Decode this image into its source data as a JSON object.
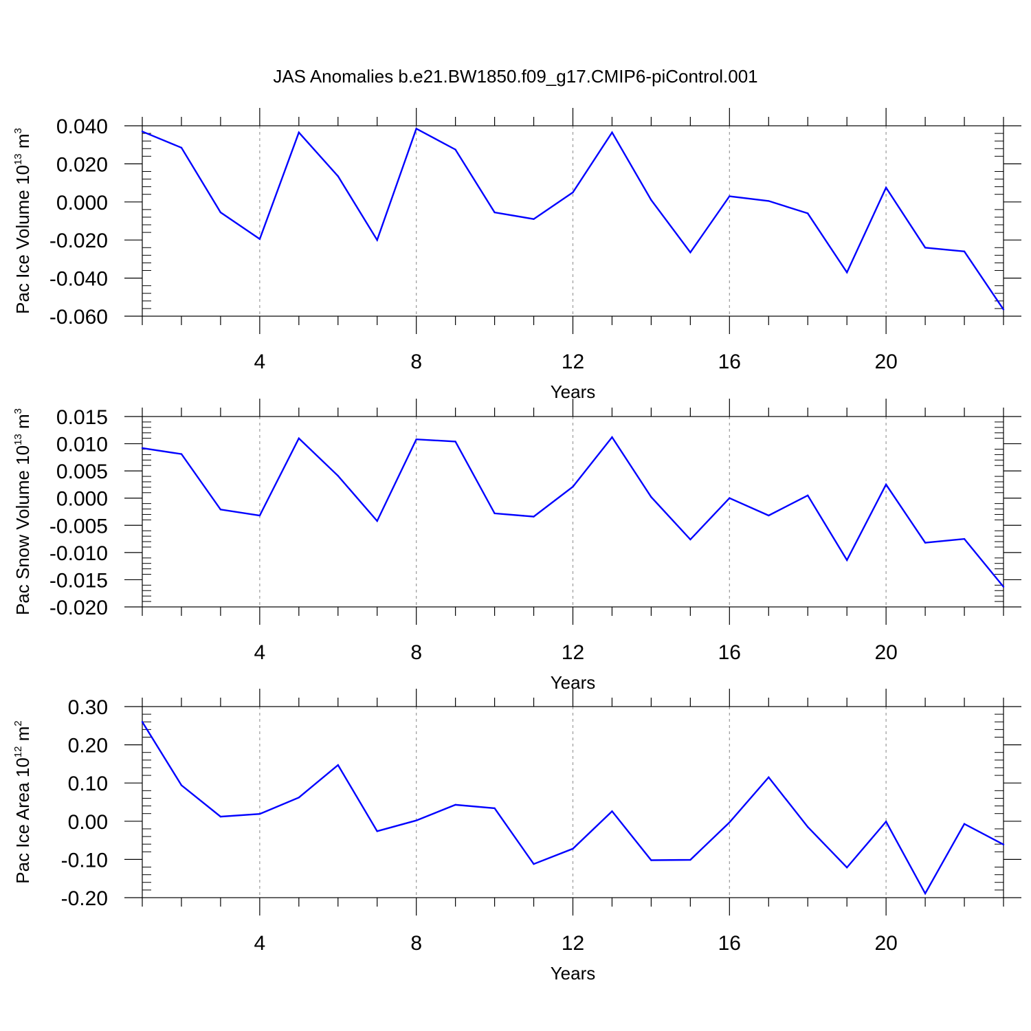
{
  "title": "JAS Anomalies b.e21.BW1850.f09_g17.CMIP6-piControl.001",
  "colors": {
    "line": "#0000ff",
    "axis": "#000000",
    "grid": "#999999"
  },
  "chart_data": [
    {
      "type": "line",
      "ylabel": {
        "prefix": "Pac Ice Volume 10",
        "exp": "13",
        "unit": " m",
        "unit_exp": "3"
      },
      "xlabel": "Years",
      "xlim": [
        1,
        23
      ],
      "ylim": [
        -0.06,
        0.04
      ],
      "yticks": [
        -0.06,
        -0.04,
        -0.02,
        0.0,
        0.02,
        0.04
      ],
      "ytick_labels": [
        "-0.060",
        "-0.040",
        "-0.020",
        "0.000",
        "0.020",
        "0.040"
      ],
      "xticks": [
        4,
        8,
        12,
        16,
        20
      ],
      "xtick_labels": [
        "4",
        "8",
        "12",
        "16",
        "20"
      ],
      "x": [
        1,
        2,
        3,
        4,
        5,
        6,
        7,
        8,
        9,
        10,
        11,
        12,
        13,
        14,
        15,
        16,
        17,
        18,
        19,
        20,
        21,
        22,
        23
      ],
      "values": [
        0.037,
        0.0285,
        -0.0055,
        -0.0195,
        0.0365,
        0.0135,
        -0.02,
        0.0385,
        0.0275,
        -0.0055,
        -0.009,
        0.005,
        0.0365,
        0.001,
        -0.0265,
        0.003,
        0.0005,
        -0.006,
        -0.037,
        0.0075,
        -0.024,
        -0.026,
        -0.0565
      ]
    },
    {
      "type": "line",
      "ylabel": {
        "prefix": "Pac Snow Volume 10",
        "exp": "13",
        "unit": " m",
        "unit_exp": "3"
      },
      "xlabel": "Years",
      "xlim": [
        1,
        23
      ],
      "ylim": [
        -0.02,
        0.015
      ],
      "yticks": [
        -0.02,
        -0.015,
        -0.01,
        -0.005,
        0.0,
        0.005,
        0.01,
        0.015
      ],
      "ytick_labels": [
        "-0.020",
        "-0.015",
        "-0.010",
        "-0.005",
        "0.000",
        "0.005",
        "0.010",
        "0.015"
      ],
      "xticks": [
        4,
        8,
        12,
        16,
        20
      ],
      "xtick_labels": [
        "4",
        "8",
        "12",
        "16",
        "20"
      ],
      "x": [
        1,
        2,
        3,
        4,
        5,
        6,
        7,
        8,
        9,
        10,
        11,
        12,
        13,
        14,
        15,
        16,
        17,
        18,
        19,
        20,
        21,
        22,
        23
      ],
      "values": [
        0.0092,
        0.0081,
        -0.0021,
        -0.0032,
        0.011,
        0.0041,
        -0.0042,
        0.0108,
        0.0104,
        -0.0028,
        -0.0034,
        0.0021,
        0.0112,
        0.0002,
        -0.0076,
        0.0,
        -0.0032,
        0.0005,
        -0.0114,
        0.0025,
        -0.0082,
        -0.0075,
        -0.0163
      ]
    },
    {
      "type": "line",
      "ylabel": {
        "prefix": "Pac Ice Area 10",
        "exp": "12",
        "unit": " m",
        "unit_exp": "2"
      },
      "xlabel": "Years",
      "xlim": [
        1,
        23
      ],
      "ylim": [
        -0.2,
        0.3
      ],
      "yticks": [
        -0.2,
        -0.1,
        0.0,
        0.1,
        0.2,
        0.3
      ],
      "ytick_labels": [
        "-0.20",
        "-0.10",
        "0.00",
        "0.10",
        "0.20",
        "0.30"
      ],
      "xticks": [
        4,
        8,
        12,
        16,
        20
      ],
      "xtick_labels": [
        "4",
        "8",
        "12",
        "16",
        "20"
      ],
      "x": [
        1,
        2,
        3,
        4,
        5,
        6,
        7,
        8,
        9,
        10,
        11,
        12,
        13,
        14,
        15,
        16,
        17,
        18,
        19,
        20,
        21,
        22,
        23
      ],
      "values": [
        0.26,
        0.094,
        0.012,
        0.019,
        0.062,
        0.147,
        -0.026,
        0.002,
        0.043,
        0.034,
        -0.112,
        -0.072,
        0.026,
        -0.102,
        -0.101,
        -0.003,
        0.115,
        -0.015,
        -0.121,
        -0.001,
        -0.189,
        -0.007,
        -0.061
      ]
    }
  ]
}
